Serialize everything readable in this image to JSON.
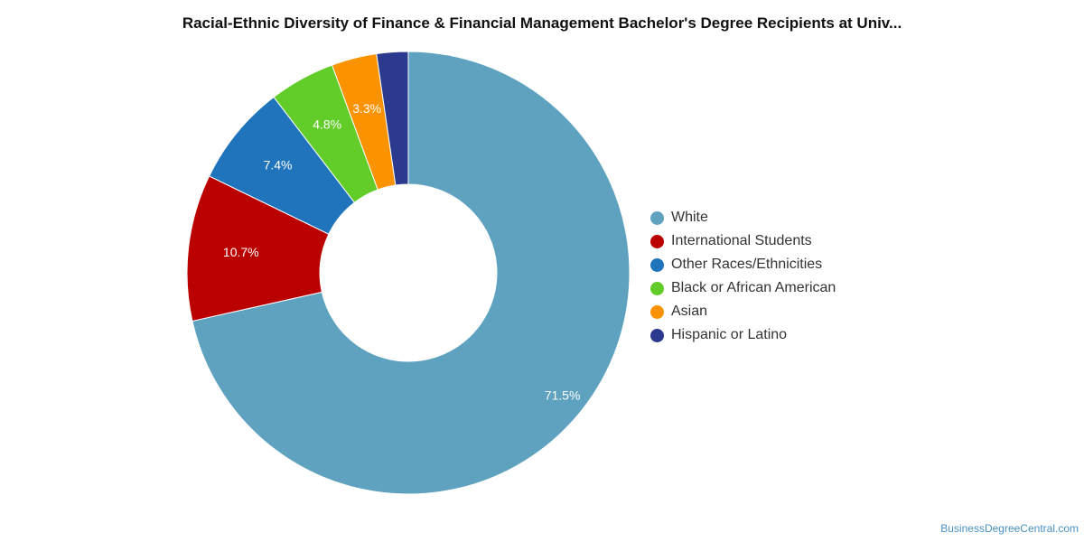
{
  "title": "Racial-Ethnic Diversity of Finance & Financial Management Bachelor's Degree Recipients at Univ...",
  "watermark": "BusinessDegreeCentral.com",
  "chart_data": {
    "type": "pie",
    "donut": true,
    "legend_position": "right",
    "slices": [
      {
        "name": "White",
        "value": 71.5,
        "label": "71.5%",
        "color": "#5fa2c0"
      },
      {
        "name": "International Students",
        "value": 10.7,
        "label": "10.7%",
        "color": "#bb0000"
      },
      {
        "name": "Other Races/Ethnicities",
        "value": 7.4,
        "label": "7.4%",
        "color": "#1f74bb"
      },
      {
        "name": "Black or African American",
        "value": 4.8,
        "label": "4.8%",
        "color": "#62cc28"
      },
      {
        "name": "Asian",
        "value": 3.3,
        "label": "3.3%",
        "color": "#fb9300"
      },
      {
        "name": "Hispanic or Latino",
        "value": 2.3,
        "label": "",
        "color": "#2b3a8e"
      }
    ]
  }
}
